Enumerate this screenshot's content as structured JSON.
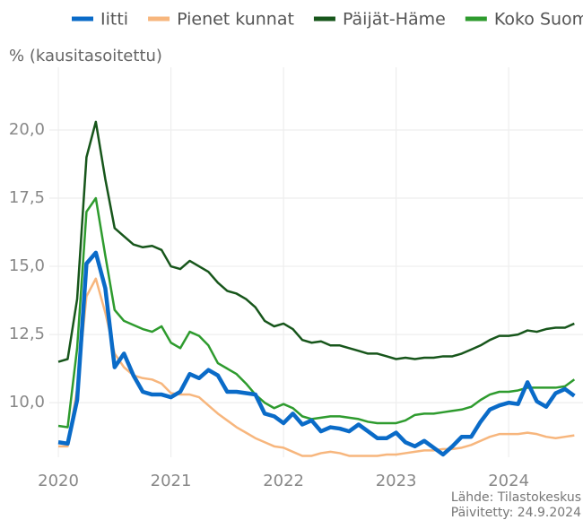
{
  "chart_data": {
    "type": "line",
    "ylabel": "% (kausitasoitettu)",
    "source": "Lähde: Tilastokeskus",
    "updated": "Päivitetty: 24.9.2024",
    "x": [
      2020,
      2020.083,
      2020.167,
      2020.25,
      2020.333,
      2020.417,
      2020.5,
      2020.583,
      2020.667,
      2020.75,
      2020.833,
      2020.917,
      2021,
      2021.083,
      2021.167,
      2021.25,
      2021.333,
      2021.417,
      2021.5,
      2021.583,
      2021.667,
      2021.75,
      2021.833,
      2021.917,
      2022,
      2022.083,
      2022.167,
      2022.25,
      2022.333,
      2022.417,
      2022.5,
      2022.583,
      2022.667,
      2022.75,
      2022.833,
      2022.917,
      2023,
      2023.083,
      2023.167,
      2023.25,
      2023.333,
      2023.417,
      2023.5,
      2023.583,
      2023.667,
      2023.75,
      2023.833,
      2023.917,
      2024,
      2024.083,
      2024.167,
      2024.25,
      2024.333,
      2024.417,
      2024.5,
      2024.583
    ],
    "xlim": [
      2019.92,
      2024.66
    ],
    "xticks": [
      2020,
      2021,
      2022,
      2023,
      2024
    ],
    "ylim": [
      8,
      22.3
    ],
    "yticks": [
      {
        "value": 10,
        "label": "10,0"
      },
      {
        "value": 12.5,
        "label": "12,5"
      },
      {
        "value": 15,
        "label": "15,0"
      },
      {
        "value": 17.5,
        "label": "17,5"
      },
      {
        "value": 20,
        "label": "20,0"
      }
    ],
    "grid": true,
    "series": [
      {
        "name": "Iitti",
        "color": "#0a6bc8",
        "width": 4.5,
        "values": [
          8.55,
          8.5,
          10.1,
          15.1,
          15.5,
          14.2,
          11.3,
          11.8,
          11.0,
          10.4,
          10.3,
          10.3,
          10.2,
          10.4,
          11.05,
          10.9,
          11.2,
          11.0,
          10.4,
          10.4,
          10.35,
          10.3,
          9.6,
          9.5,
          9.25,
          9.6,
          9.2,
          9.35,
          8.95,
          9.1,
          9.05,
          8.95,
          9.2,
          8.95,
          8.7,
          8.7,
          8.9,
          8.55,
          8.4,
          8.6,
          8.35,
          8.1,
          8.4,
          8.75,
          8.75,
          9.3,
          9.75,
          9.9,
          10.0,
          9.95,
          10.75,
          10.05,
          9.85,
          10.35,
          10.5,
          10.25
        ]
      },
      {
        "name": "Pienet kunnat",
        "color": "#f7b67d",
        "width": 2.5,
        "values": [
          8.4,
          8.4,
          10.5,
          13.9,
          14.55,
          13.3,
          11.8,
          11.3,
          11.0,
          10.9,
          10.85,
          10.7,
          10.35,
          10.3,
          10.3,
          10.2,
          9.9,
          9.6,
          9.35,
          9.1,
          8.9,
          8.7,
          8.55,
          8.4,
          8.35,
          8.2,
          8.05,
          8.05,
          8.15,
          8.2,
          8.15,
          8.05,
          8.05,
          8.05,
          8.05,
          8.1,
          8.1,
          8.15,
          8.2,
          8.25,
          8.25,
          8.3,
          8.3,
          8.35,
          8.45,
          8.6,
          8.75,
          8.85,
          8.85,
          8.85,
          8.9,
          8.85,
          8.75,
          8.7,
          8.75,
          8.8
        ]
      },
      {
        "name": "Päijät-Häme",
        "color": "#17561b",
        "width": 2.5,
        "values": [
          11.5,
          11.6,
          13.8,
          19.0,
          20.3,
          18.2,
          16.4,
          16.1,
          15.8,
          15.7,
          15.75,
          15.6,
          15.0,
          14.9,
          15.2,
          15.0,
          14.8,
          14.4,
          14.1,
          14.0,
          13.8,
          13.5,
          13.0,
          12.8,
          12.9,
          12.7,
          12.3,
          12.2,
          12.25,
          12.1,
          12.1,
          12.0,
          11.9,
          11.8,
          11.8,
          11.7,
          11.6,
          11.65,
          11.6,
          11.65,
          11.65,
          11.7,
          11.7,
          11.8,
          11.95,
          12.1,
          12.3,
          12.45,
          12.45,
          12.5,
          12.65,
          12.6,
          12.7,
          12.75,
          12.75,
          12.9
        ]
      },
      {
        "name": "Koko Suomi",
        "color": "#2e9b2e",
        "width": 2.5,
        "values": [
          9.15,
          9.1,
          12.0,
          17.0,
          17.5,
          15.4,
          13.4,
          13.0,
          12.85,
          12.7,
          12.6,
          12.8,
          12.2,
          12.0,
          12.6,
          12.45,
          12.1,
          11.45,
          11.25,
          11.05,
          10.7,
          10.3,
          10.0,
          9.8,
          9.95,
          9.8,
          9.5,
          9.4,
          9.45,
          9.5,
          9.5,
          9.45,
          9.4,
          9.3,
          9.25,
          9.25,
          9.25,
          9.35,
          9.55,
          9.6,
          9.6,
          9.65,
          9.7,
          9.75,
          9.85,
          10.1,
          10.3,
          10.4,
          10.4,
          10.45,
          10.55,
          10.55,
          10.55,
          10.55,
          10.6,
          10.85
        ]
      }
    ]
  }
}
